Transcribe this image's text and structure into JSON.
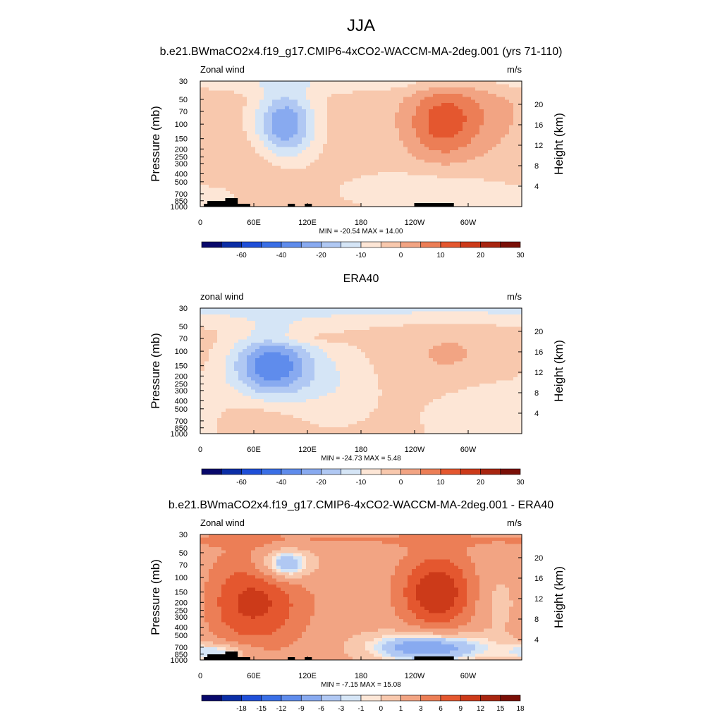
{
  "figure": {
    "title": "JJA"
  },
  "colors": {
    "cbar_palette": [
      "#08086b",
      "#0b2ea6",
      "#1f4fd8",
      "#3a6fe6",
      "#5f8cec",
      "#88aaf0",
      "#b0c8f3",
      "#d5e5f6",
      "#fde6d6",
      "#f8c8ad",
      "#f2a483",
      "#ec7e56",
      "#e4572f",
      "#cc3a19",
      "#a82510",
      "#7a0f07"
    ],
    "land": "#000000",
    "frame": "#000000"
  },
  "chart_data": [
    {
      "type": "heatmap",
      "panel_title": "b.e21.BWmaCO2x4.f19_g17.CMIP6-4xCO2-WACCM-MA-2deg.001 (yrs 71-110)",
      "left_label": "Zonal wind",
      "right_label": "m/s",
      "ylabel": "Pressure (mb)",
      "y2label": "Height (km)",
      "x_ticks": [
        "0",
        "60E",
        "120E",
        "180",
        "120W",
        "60W"
      ],
      "x_tick_lon": [
        0,
        60,
        120,
        180,
        240,
        300
      ],
      "xlim": [
        0,
        360
      ],
      "p_ticks": [
        30,
        50,
        70,
        100,
        150,
        200,
        250,
        300,
        400,
        500,
        700,
        850,
        1000
      ],
      "ylim_mb": [
        1000,
        30
      ],
      "height_ticks_km": [
        4,
        8,
        12,
        16,
        20
      ],
      "stats": "MIN = -20.54  MAX =  14.00",
      "min": -20.54,
      "max": 14.0,
      "levels": [
        -70,
        -60,
        -50,
        -40,
        -30,
        -20,
        -15,
        -10,
        -5,
        0,
        5,
        10,
        15,
        20,
        25,
        30,
        35
      ],
      "cbar_labels": [
        "-60",
        "-40",
        "-20",
        "-10",
        "0",
        "10",
        "20",
        "30"
      ],
      "cbar_label_pos": [
        1,
        3,
        5,
        7,
        9,
        11,
        13,
        15
      ],
      "background_value": 2,
      "features": [
        {
          "lon": 0,
          "p": 30,
          "rx": 360,
          "rdec": 0.14,
          "amp": -5,
          "shape": "band"
        },
        {
          "lon": 95,
          "p": 100,
          "rx": 32,
          "rdec": 0.4,
          "amp": -22
        },
        {
          "lon": 270,
          "p": 100,
          "rx": 38,
          "rdec": 0.42,
          "amp": 12
        },
        {
          "lon": 300,
          "p": 70,
          "rx": 60,
          "rdec": 0.5,
          "amp": 6
        },
        {
          "lon": 60,
          "p": 400,
          "rx": 45,
          "rdec": 0.45,
          "amp": 3
        },
        {
          "lon": 250,
          "p": 650,
          "rx": 90,
          "rdec": 0.25,
          "amp": -6
        },
        {
          "lon": 20,
          "p": 750,
          "rx": 40,
          "rdec": 0.15,
          "amp": -4
        }
      ]
    },
    {
      "type": "heatmap",
      "panel_title": "ERA40",
      "left_label": "zonal wind",
      "right_label": "m/s",
      "ylabel": "Pressure (mb)",
      "y2label": "Height (km)",
      "x_ticks": [
        "0",
        "60E",
        "120E",
        "180",
        "120W",
        "60W"
      ],
      "x_tick_lon": [
        0,
        60,
        120,
        180,
        240,
        300
      ],
      "xlim": [
        0,
        360
      ],
      "p_ticks": [
        30,
        50,
        70,
        100,
        150,
        200,
        250,
        300,
        400,
        500,
        700,
        850,
        1000
      ],
      "ylim_mb": [
        1000,
        30
      ],
      "height_ticks_km": [
        4,
        8,
        12,
        16,
        20
      ],
      "stats": "MIN = -24.73  MAX =   5.48",
      "min": -24.73,
      "max": 5.48,
      "levels": [
        -70,
        -60,
        -50,
        -40,
        -30,
        -20,
        -15,
        -10,
        -5,
        0,
        5,
        10,
        15,
        20,
        25,
        30,
        35
      ],
      "cbar_labels": [
        "-60",
        "-40",
        "-20",
        "-10",
        "0",
        "10",
        "20",
        "30"
      ],
      "cbar_label_pos": [
        1,
        3,
        5,
        7,
        9,
        11,
        13,
        15
      ],
      "background_value": 2,
      "features": [
        {
          "lon": 0,
          "p": 30,
          "rx": 360,
          "rdec": 0.2,
          "amp": -8,
          "shape": "band"
        },
        {
          "lon": 80,
          "p": 150,
          "rx": 45,
          "rdec": 0.38,
          "amp": -26
        },
        {
          "lon": 150,
          "p": 250,
          "rx": 50,
          "rdec": 0.5,
          "amp": -6
        },
        {
          "lon": 320,
          "p": 600,
          "rx": 70,
          "rdec": 0.5,
          "amp": -6
        },
        {
          "lon": 280,
          "p": 120,
          "rx": 60,
          "rdec": 0.4,
          "amp": 4
        },
        {
          "lon": 110,
          "p": 70,
          "rx": 50,
          "rdec": 0.08,
          "amp": 4
        },
        {
          "lon": 60,
          "p": 700,
          "rx": 40,
          "rdec": 0.25,
          "amp": 3
        }
      ]
    },
    {
      "type": "heatmap",
      "panel_title": "b.e21.BWmaCO2x4.f19_g17.CMIP6-4xCO2-WACCM-MA-2deg.001 - ERA40",
      "left_label": "Zonal wind",
      "right_label": "m/s",
      "ylabel": "Pressure (mb)",
      "y2label": "Height (km)",
      "x_ticks": [
        "0",
        "60E",
        "120E",
        "180",
        "120W",
        "60W"
      ],
      "x_tick_lon": [
        0,
        60,
        120,
        180,
        240,
        300
      ],
      "xlim": [
        0,
        360
      ],
      "p_ticks": [
        30,
        50,
        70,
        100,
        150,
        200,
        250,
        300,
        400,
        500,
        700,
        850,
        1000
      ],
      "ylim_mb": [
        1000,
        30
      ],
      "height_ticks_km": [
        4,
        8,
        12,
        16,
        20
      ],
      "stats": "MIN = -7.15  MAX = 15.08",
      "min": -7.15,
      "max": 15.08,
      "levels": [
        -21,
        -18,
        -15,
        -12,
        -9,
        -6,
        -3,
        -1,
        0,
        1,
        3,
        6,
        9,
        12,
        15,
        18,
        21
      ],
      "cbar_labels": [
        "-18",
        "-15",
        "-12",
        "-9",
        "-6",
        "-3",
        "-1",
        "0",
        "1",
        "3",
        "6",
        "9",
        "12",
        "15",
        "18"
      ],
      "cbar_label_pos": [
        1,
        2,
        3,
        4,
        5,
        6,
        7,
        8,
        9,
        10,
        11,
        12,
        13,
        14,
        15
      ],
      "background_value": 4,
      "features": [
        {
          "lon": 60,
          "p": 200,
          "rx": 55,
          "rdec": 0.55,
          "amp": 9
        },
        {
          "lon": 265,
          "p": 150,
          "rx": 40,
          "rdec": 0.45,
          "amp": 11
        },
        {
          "lon": 95,
          "p": 70,
          "rx": 30,
          "rdec": 0.2,
          "amp": -9
        },
        {
          "lon": 255,
          "p": 700,
          "rx": 65,
          "rdec": 0.18,
          "amp": -10
        },
        {
          "lon": 20,
          "p": 800,
          "rx": 40,
          "rdec": 0.12,
          "amp": -6
        },
        {
          "lon": 340,
          "p": 200,
          "rx": 30,
          "rdec": 0.4,
          "amp": -3
        },
        {
          "lon": 0,
          "p": 35,
          "rx": 360,
          "rdec": 0.1,
          "amp": 2,
          "shape": "band"
        }
      ]
    }
  ]
}
